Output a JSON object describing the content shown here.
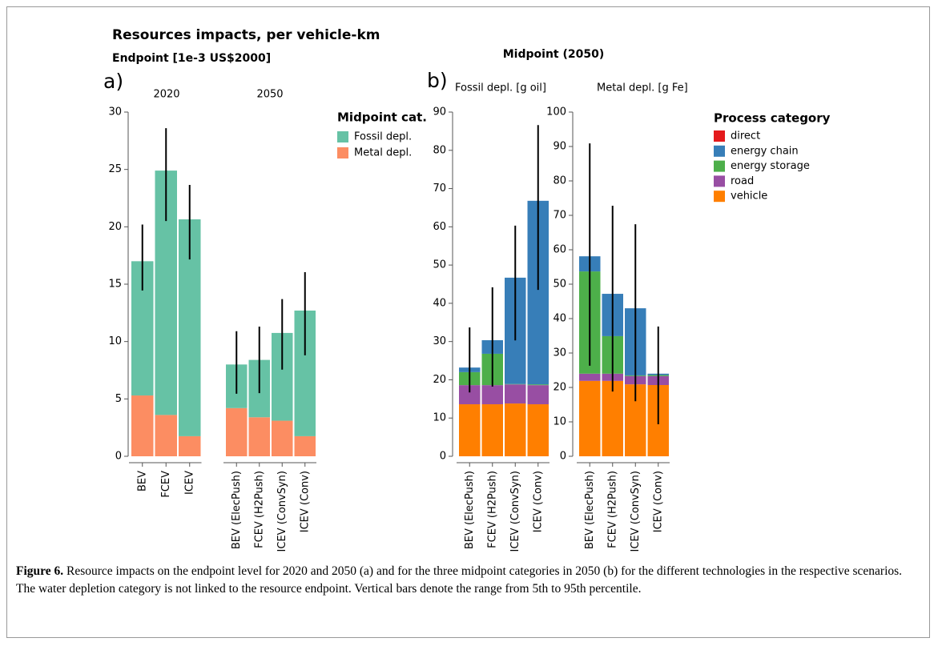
{
  "figure": {
    "title": "Resources impacts, per vehicle-km",
    "panels": [
      {
        "label": "a)",
        "title": "Endpoint [1e-3 US$2000]",
        "legend_title": "Midpoint cat."
      },
      {
        "label": "b)",
        "title": "Midpoint (2050)",
        "legend_title": "Process category"
      }
    ],
    "caption": {
      "label": "Figure 6.",
      "text": "Resource impacts on the endpoint level for 2020 and 2050 (a) and for the three midpoint categories in 2050 (b) for the different technologies in the respective scenarios. The water depletion category is not linked to the resource endpoint. Vertical bars denote the range from 5th to 95th percentile."
    }
  },
  "chart_data": [
    {
      "type": "bar",
      "stacked": true,
      "title": "2020",
      "categories": [
        "BEV",
        "FCEV",
        "ICEV"
      ],
      "series": [
        {
          "name": "Fossil depl.",
          "color": "#66c2a5",
          "values": [
            11.7,
            21.3,
            18.9
          ]
        },
        {
          "name": "Metal depl.",
          "color": "#fc8d62",
          "values": [
            5.3,
            3.6,
            1.75
          ]
        }
      ],
      "error_low": [
        14.45,
        20.5,
        17.15
      ],
      "error_high": [
        20.2,
        28.6,
        23.65
      ],
      "ylim": [
        0,
        30
      ],
      "yticks": [
        0,
        5,
        10,
        15,
        20,
        25,
        30
      ]
    },
    {
      "type": "bar",
      "stacked": true,
      "title": "2050",
      "categories": [
        "BEV (ElecPush)",
        "FCEV (H2Push)",
        "ICEV (ConvSyn)",
        "ICEV (Conv)"
      ],
      "series": [
        {
          "values": [
            3.8,
            5.0,
            7.65,
            10.95
          ]
        },
        {
          "values": [
            4.2,
            3.4,
            3.1,
            1.75
          ]
        }
      ],
      "error_low": [
        5.45,
        5.5,
        7.55,
        8.8
      ],
      "error_high": [
        10.9,
        11.3,
        13.7,
        16.05
      ],
      "ylim": [
        0,
        30
      ]
    },
    {
      "type": "bar",
      "stacked": true,
      "title": "Fossil depl. [g oil]",
      "categories": [
        "BEV (ElecPush)",
        "FCEV (H2Push)",
        "ICEV (ConvSyn)",
        "ICEV (Conv)"
      ],
      "series": [
        {
          "name": "direct",
          "color": "#e41a1c",
          "values": [
            0,
            0,
            0,
            0
          ]
        },
        {
          "name": "energy chain",
          "color": "#377eb8",
          "values": [
            1.2,
            3.55,
            27.8,
            48.0
          ]
        },
        {
          "name": "energy storage",
          "color": "#4daf4a",
          "values": [
            3.4,
            8.2,
            0.1,
            0.2
          ]
        },
        {
          "name": "road",
          "color": "#984ea3",
          "values": [
            5.0,
            5.0,
            5.0,
            5.0
          ]
        },
        {
          "name": "vehicle",
          "color": "#ff7f00",
          "values": [
            13.6,
            13.6,
            13.8,
            13.6
          ]
        }
      ],
      "error_low": [
        16.7,
        18.2,
        30.3,
        43.5
      ],
      "error_high": [
        33.7,
        44.2,
        60.3,
        86.6
      ],
      "ylim": [
        0,
        90
      ],
      "yticks": [
        0,
        10,
        20,
        30,
        40,
        50,
        60,
        70,
        80,
        90
      ]
    },
    {
      "type": "bar",
      "stacked": true,
      "title": "Metal depl. [g Fe]",
      "categories": [
        "BEV (ElecPush)",
        "FCEV (H2Push)",
        "ICEV (ConvSyn)",
        "ICEV (Conv)"
      ],
      "series": [
        {
          "values": [
            0,
            0,
            0,
            0
          ]
        },
        {
          "values": [
            4.4,
            12.3,
            19.5,
            0.4
          ]
        },
        {
          "values": [
            29.7,
            10.9,
            0.2,
            0.3
          ]
        },
        {
          "values": [
            2.1,
            2.1,
            2.4,
            2.6
          ]
        },
        {
          "values": [
            21.9,
            21.9,
            20.9,
            20.7
          ]
        }
      ],
      "error_low": [
        26.3,
        18.8,
        16.0,
        9.3
      ],
      "error_high": [
        90.9,
        72.8,
        67.4,
        37.7
      ],
      "ylim": [
        0,
        100
      ],
      "yticks": [
        0,
        10,
        20,
        30,
        40,
        50,
        60,
        70,
        80,
        90,
        100
      ]
    }
  ]
}
